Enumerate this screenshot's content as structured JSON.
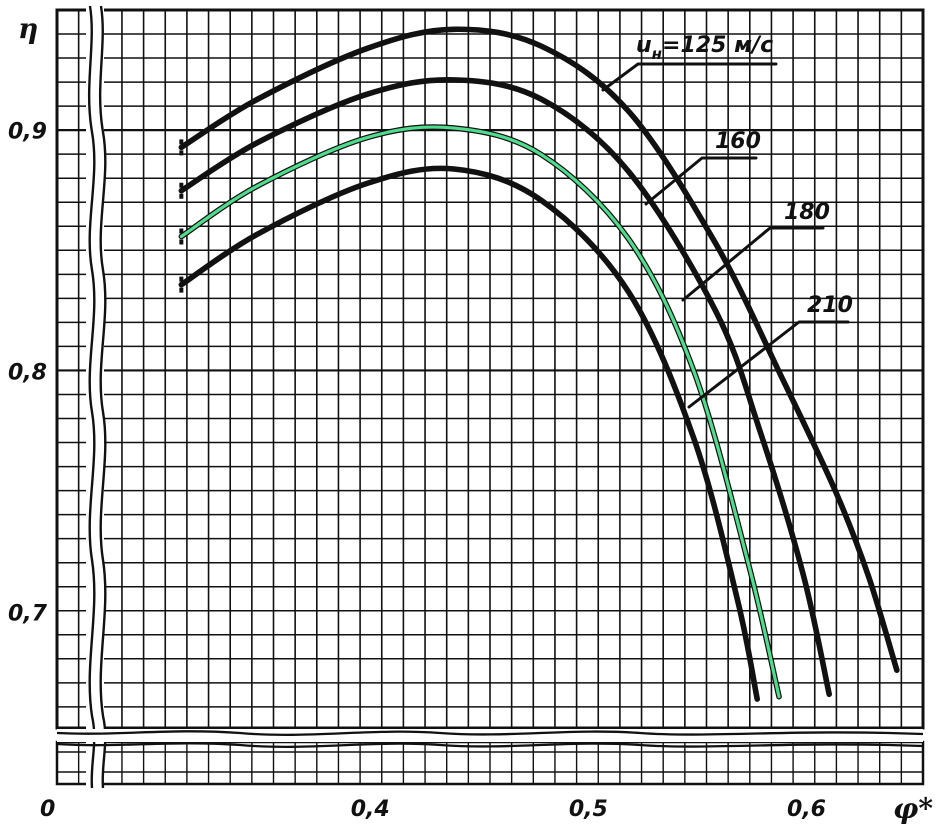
{
  "chart_data": {
    "type": "line",
    "title": "",
    "xlabel": "φ*",
    "ylabel": "η",
    "origin_label": "0",
    "x_tick_labels": [
      "0,4",
      "0,5",
      "0,6"
    ],
    "x_tick_values": [
      0.4,
      0.5,
      0.6
    ],
    "y_tick_labels": [
      "0,9",
      "0,8",
      "0,7"
    ],
    "y_tick_values": [
      0.9,
      0.8,
      0.7
    ],
    "xlim": [
      0.258,
      0.655
    ],
    "ylim": [
      0.652,
      0.95
    ],
    "axis_break": true,
    "grid": true,
    "highlight_color": "#4fdc8c",
    "line_color": "#111111",
    "series": [
      {
        "name": "u_н = 125 м/с",
        "label_parts": {
          "symbol": "u",
          "subscript": "н",
          "value": "=125 м/с"
        },
        "x": [
          0.315,
          0.35,
          0.4,
          0.44,
          0.48,
          0.52,
          0.56,
          0.59,
          0.615,
          0.63,
          0.643
        ],
        "y": [
          0.893,
          0.913,
          0.934,
          0.942,
          0.935,
          0.908,
          0.853,
          0.798,
          0.75,
          0.715,
          0.676
        ],
        "highlighted": false
      },
      {
        "name": "160",
        "x": [
          0.315,
          0.35,
          0.4,
          0.44,
          0.48,
          0.52,
          0.56,
          0.58,
          0.6,
          0.612
        ],
        "y": [
          0.875,
          0.895,
          0.915,
          0.921,
          0.913,
          0.883,
          0.825,
          0.776,
          0.716,
          0.666
        ],
        "highlighted": false
      },
      {
        "name": "180",
        "x": [
          0.315,
          0.35,
          0.4,
          0.44,
          0.48,
          0.52,
          0.55,
          0.575,
          0.589
        ],
        "y": [
          0.856,
          0.877,
          0.897,
          0.901,
          0.89,
          0.855,
          0.8,
          0.72,
          0.665
        ],
        "highlighted": true
      },
      {
        "name": "210",
        "x": [
          0.315,
          0.35,
          0.4,
          0.44,
          0.48,
          0.52,
          0.55,
          0.57,
          0.579
        ],
        "y": [
          0.836,
          0.857,
          0.878,
          0.884,
          0.871,
          0.833,
          0.772,
          0.705,
          0.664
        ],
        "highlighted": false
      }
    ]
  }
}
